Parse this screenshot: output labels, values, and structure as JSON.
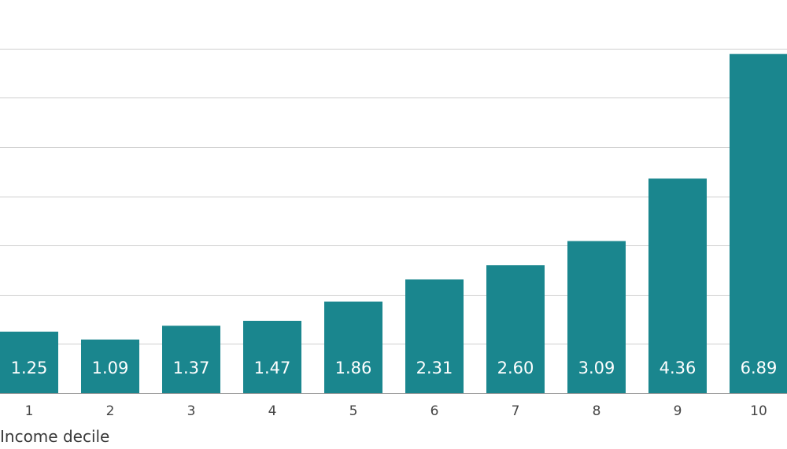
{
  "chart_data": {
    "type": "bar",
    "categories": [
      "1",
      "2",
      "3",
      "4",
      "5",
      "6",
      "7",
      "8",
      "9",
      "10"
    ],
    "values": [
      1.25,
      1.09,
      1.37,
      1.47,
      1.86,
      2.31,
      2.6,
      3.09,
      4.36,
      6.89
    ],
    "value_labels": [
      "1.25",
      "1.09",
      "1.37",
      "1.47",
      "1.86",
      "2.31",
      "2.60",
      "3.09",
      "4.36",
      "6.89"
    ],
    "xlabel": "Income decile",
    "ylim": [
      0,
      8
    ],
    "gridline_step": 1,
    "grid": true,
    "bar_color": "#1a868e",
    "gridline_color": "#cfcfcf",
    "data_label_color": "#ffffff"
  }
}
